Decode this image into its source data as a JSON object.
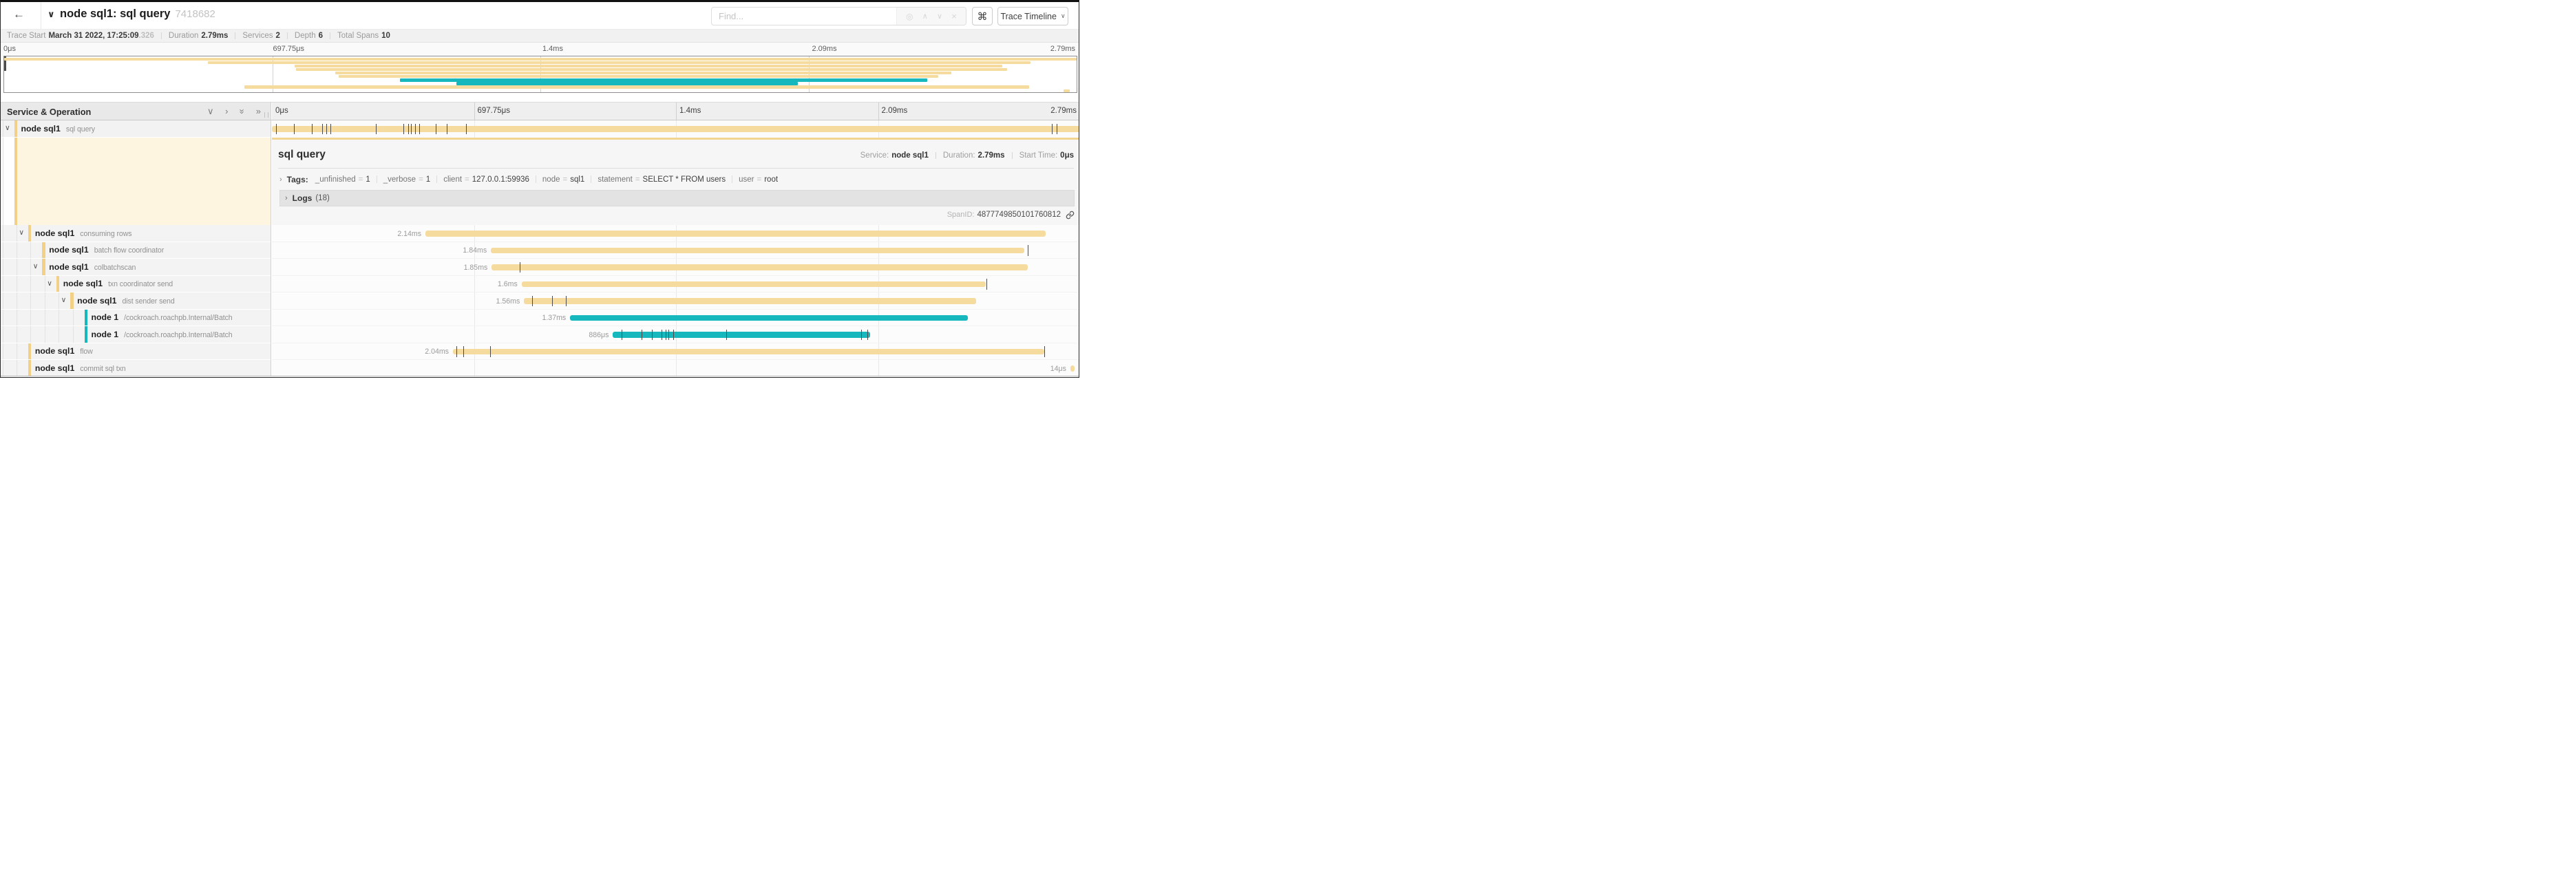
{
  "header": {
    "back_icon": "←",
    "collapse_icon": "∨",
    "title": "node sql1: sql query",
    "trace_id": "7418682",
    "find": {
      "placeholder": "Find...",
      "icons": [
        "locate",
        "prev",
        "next",
        "clear"
      ]
    },
    "shortcut_button": "⌘",
    "view_button": {
      "label": "Trace Timeline",
      "caret": "∨"
    }
  },
  "stats": {
    "items": [
      {
        "label": "Trace Start",
        "value": "March 31 2022, 17:25:09",
        "suffix": ".326"
      },
      {
        "label": "Duration",
        "value": "2.79ms"
      },
      {
        "label": "Services",
        "value": "2"
      },
      {
        "label": "Depth",
        "value": "6"
      },
      {
        "label": "Total Spans",
        "value": "10"
      }
    ]
  },
  "timeline": {
    "ruler_labels": [
      "0μs",
      "697.75μs",
      "1.4ms",
      "2.09ms",
      "2.79ms"
    ],
    "ruler_positions": [
      0,
      25,
      50,
      75,
      100
    ],
    "gridline_positions": [
      25,
      50,
      75
    ]
  },
  "left_header": {
    "title": "Service & Operation",
    "icons": [
      "collapse-one",
      "expand-one",
      "collapse-all",
      "expand-all"
    ]
  },
  "colors": {
    "tan": "#f6db9f",
    "tan_stripe": "#f2d088",
    "teal": "#16b8be",
    "selected_bg": "#fdf5e0"
  },
  "detail": {
    "operation": "sql query",
    "meta": [
      {
        "label": "Service:",
        "value": "node sql1"
      },
      {
        "label": "Duration:",
        "value": "2.79ms"
      },
      {
        "label": "Start Time:",
        "value": "0μs"
      }
    ],
    "tags_label": "Tags:",
    "tags": [
      {
        "key": "_unfinished",
        "value": "1"
      },
      {
        "key": "_verbose",
        "value": "1"
      },
      {
        "key": "client",
        "value": "127.0.0.1:59936"
      },
      {
        "key": "node",
        "value": "sql1"
      },
      {
        "key": "statement",
        "value": "SELECT * FROM users"
      },
      {
        "key": "user",
        "value": "root"
      }
    ],
    "logs_label": "Logs",
    "logs_count": "(18)",
    "span_id_label": "SpanID:",
    "span_id": "4877749850101760812"
  },
  "spans": [
    {
      "service": "node sql1",
      "operation": "sql query",
      "depth": 0,
      "expandable": true,
      "color": "tan",
      "duration_label": "",
      "start": 0.0,
      "width": 1.0,
      "selected": true,
      "ticks": [
        0.005,
        0.027,
        0.049,
        0.062,
        0.067,
        0.072,
        0.129,
        0.163,
        0.169,
        0.172,
        0.177,
        0.182,
        0.203,
        0.216,
        0.24,
        0.965,
        0.971
      ]
    },
    {
      "service": "node sql1",
      "operation": "consuming rows",
      "depth": 1,
      "expandable": true,
      "color": "tan",
      "duration_label": "2.14ms",
      "start": 0.19,
      "width": 0.767,
      "ticks": []
    },
    {
      "service": "node sql1",
      "operation": "batch flow coordinator",
      "depth": 2,
      "expandable": false,
      "color": "tan",
      "duration_label": "1.84ms",
      "start": 0.271,
      "width": 0.66,
      "ticks": [
        0.935
      ]
    },
    {
      "service": "node sql1",
      "operation": "colbatchscan",
      "depth": 2,
      "expandable": true,
      "color": "tan",
      "duration_label": "1.85ms",
      "start": 0.272,
      "width": 0.663,
      "ticks": [
        0.307
      ]
    },
    {
      "service": "node sql1",
      "operation": "txn coordinator send",
      "depth": 3,
      "expandable": true,
      "color": "tan",
      "duration_label": "1.6ms",
      "start": 0.309,
      "width": 0.574,
      "ticks": [
        0.884
      ]
    },
    {
      "service": "node sql1",
      "operation": "dist sender send",
      "depth": 4,
      "expandable": true,
      "color": "tan",
      "duration_label": "1.56ms",
      "start": 0.312,
      "width": 0.559,
      "ticks": [
        0.322,
        0.347,
        0.364
      ]
    },
    {
      "service": "node 1",
      "operation": "/cockroach.roachpb.Internal/Batch",
      "depth": 5,
      "expandable": false,
      "color": "teal",
      "duration_label": "1.37ms",
      "start": 0.369,
      "width": 0.492,
      "ticks": []
    },
    {
      "service": "node 1",
      "operation": "/cockroach.roachpb.Internal/Batch",
      "depth": 5,
      "expandable": false,
      "color": "teal",
      "duration_label": "886μs",
      "start": 0.422,
      "width": 0.318,
      "ticks": [
        0.433,
        0.457,
        0.47,
        0.482,
        0.487,
        0.491,
        0.497,
        0.562,
        0.729,
        0.737
      ]
    },
    {
      "service": "node sql1",
      "operation": "flow",
      "depth": 1,
      "expandable": false,
      "color": "tan",
      "duration_label": "2.04ms",
      "start": 0.224,
      "width": 0.732,
      "ticks": [
        0.228,
        0.237,
        0.27,
        0.956
      ]
    },
    {
      "service": "node sql1",
      "operation": "commit sql txn",
      "depth": 1,
      "expandable": false,
      "color": "tan",
      "duration_label": "14μs",
      "start": 0.988,
      "width": 0.0055,
      "ticks": []
    }
  ]
}
